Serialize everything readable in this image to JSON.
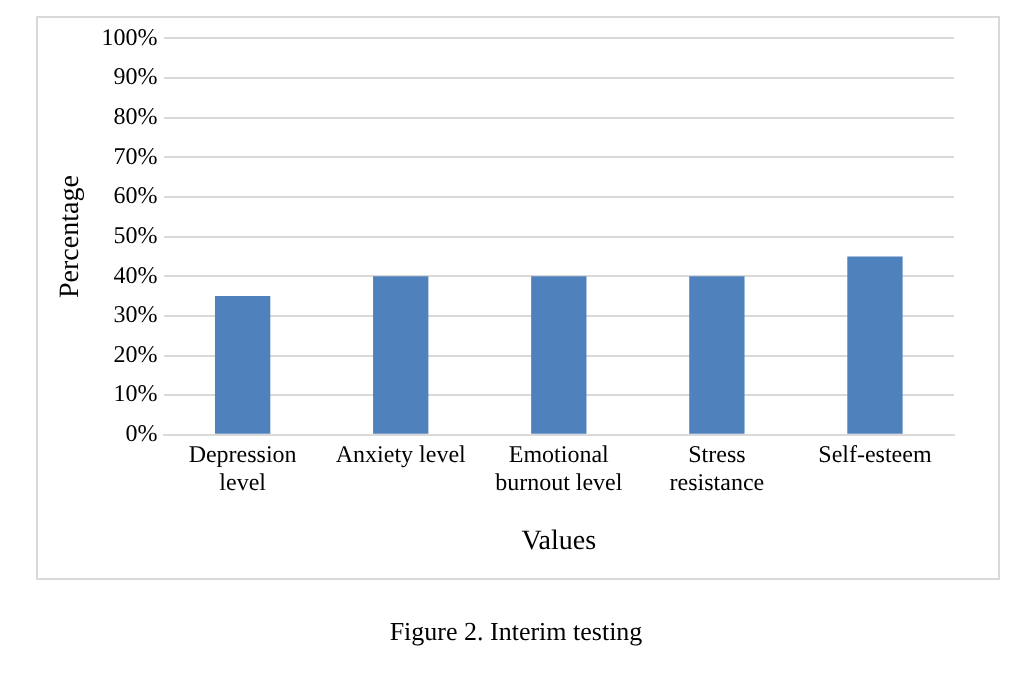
{
  "chart_data": {
    "type": "bar",
    "xlabel": "Values",
    "ylabel": "Percentage",
    "categories": [
      "Depression level",
      "Anxiety level",
      "Emotional burnout level",
      "Stress resistance",
      "Self-esteem"
    ],
    "values": [
      35,
      40,
      40,
      40,
      45
    ],
    "color": "#4f81bd",
    "ylim": [
      0,
      100
    ],
    "yticks": [
      {
        "value": 0,
        "label": "0%"
      },
      {
        "value": 10,
        "label": "10%"
      },
      {
        "value": 20,
        "label": "20%"
      },
      {
        "value": 30,
        "label": "30%"
      },
      {
        "value": 40,
        "label": "40%"
      },
      {
        "value": 50,
        "label": "50%"
      },
      {
        "value": 60,
        "label": "60%"
      },
      {
        "value": 70,
        "label": "70%"
      },
      {
        "value": 80,
        "label": "80%"
      },
      {
        "value": 90,
        "label": "90%"
      },
      {
        "value": 100,
        "label": "100%"
      }
    ],
    "grid": "y",
    "legend": false,
    "annotations": [
      "Figure 2. Interim testing"
    ]
  }
}
